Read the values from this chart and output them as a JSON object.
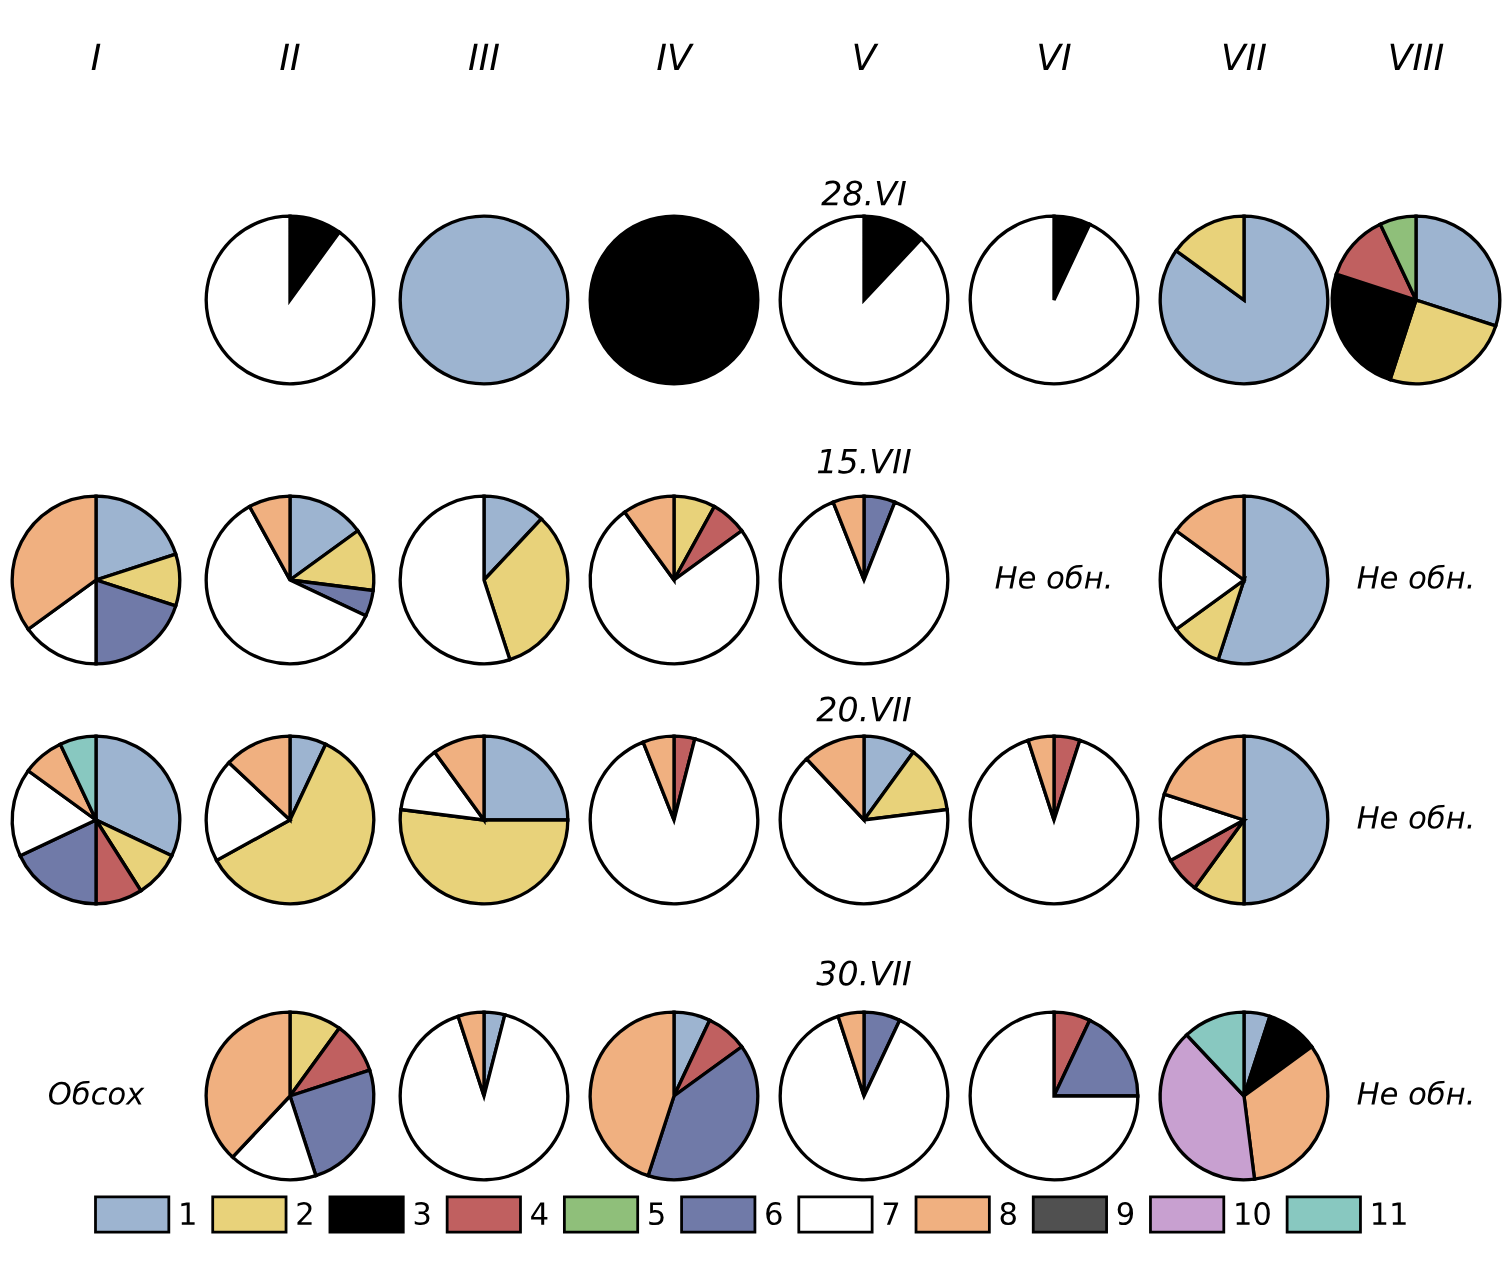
{
  "chart_data": [
    {
      "type": "other",
      "annotations": [
        "I",
        "II",
        "III",
        "IV",
        "V",
        "VI",
        "VII",
        "VIII"
      ]
    },
    {
      "type": "other",
      "title": "28.VI"
    },
    {
      "type": "other"
    },
    {
      "type": "pie",
      "legend": "bottom",
      "categories": [
        "1",
        "2",
        "3",
        "4",
        "5",
        "6",
        "7",
        "8",
        "9",
        "10",
        "11"
      ],
      "values": [
        null,
        null,
        10,
        null,
        null,
        null,
        90,
        null,
        null,
        null,
        null
      ],
      "colors": [
        "#9db4d0",
        "#e8d27a",
        "#000000",
        "#c06060",
        "#8fbf7a",
        "#707aa8",
        "#ffffff",
        "#f0b080",
        "#505050",
        "#c8a0d0",
        "#88c8c0"
      ]
    },
    {
      "type": "pie",
      "categories": [
        null,
        null,
        null,
        null,
        null,
        null,
        null,
        null,
        null,
        null,
        null
      ],
      "values": [
        100,
        null,
        null,
        null,
        null,
        null,
        null,
        null,
        null,
        null,
        null
      ],
      "colors": [
        "#9db4d0",
        "#e8d27a",
        "#000000",
        "#c06060",
        "#8fbf7a",
        "#707aa8",
        "#ffffff",
        "#f0b080",
        "#505050",
        "#c8a0d0",
        "#88c8c0"
      ]
    },
    {
      "type": "pie",
      "categories": [
        null,
        null,
        null,
        null,
        null,
        null,
        null,
        null,
        null,
        null,
        null
      ],
      "values": [
        null,
        null,
        100,
        null,
        null,
        null,
        null,
        null,
        null,
        null,
        null
      ],
      "colors": [
        "#9db4d0",
        "#e8d27a",
        "#000000",
        "#c06060",
        "#8fbf7a",
        "#707aa8",
        "#ffffff",
        "#f0b080",
        "#505050",
        "#c8a0d0",
        "#88c8c0"
      ]
    },
    {
      "type": "pie",
      "categories": [
        null,
        null,
        null,
        null,
        null,
        null,
        null,
        null,
        null,
        null,
        null
      ],
      "values": [
        null,
        null,
        12,
        null,
        null,
        null,
        88,
        null,
        null,
        null,
        null
      ],
      "colors": [
        "#9db4d0",
        "#e8d27a",
        "#000000",
        "#c06060",
        "#8fbf7a",
        "#707aa8",
        "#ffffff",
        "#f0b080",
        "#505050",
        "#c8a0d0",
        "#88c8c0"
      ]
    },
    {
      "type": "pie",
      "categories": [
        null,
        null,
        null,
        null,
        null,
        null,
        null,
        null,
        null,
        null,
        null
      ],
      "values": [
        null,
        null,
        7,
        null,
        null,
        null,
        93,
        null,
        null,
        null,
        null
      ],
      "colors": [
        "#9db4d0",
        "#e8d27a",
        "#000000",
        "#c06060",
        "#8fbf7a",
        "#707aa8",
        "#ffffff",
        "#f0b080",
        "#505050",
        "#c8a0d0",
        "#88c8c0"
      ]
    },
    {
      "type": "pie",
      "categories": [
        null,
        null,
        null,
        null,
        null,
        null,
        null,
        null,
        null,
        null,
        null
      ],
      "values": [
        85,
        15,
        null,
        null,
        null,
        null,
        null,
        null,
        null,
        null,
        null
      ],
      "colors": [
        "#9db4d0",
        "#e8d27a",
        "#000000",
        "#c06060",
        "#8fbf7a",
        "#707aa8",
        "#ffffff",
        "#f0b080",
        "#505050",
        "#c8a0d0",
        "#88c8c0"
      ]
    },
    {
      "type": "pie",
      "categories": [
        null,
        null,
        null,
        null,
        null,
        null,
        null,
        null,
        null,
        null,
        null
      ],
      "values": [
        30,
        25,
        25,
        13,
        7,
        null,
        null,
        null,
        null,
        null,
        null
      ],
      "colors": [
        "#9db4d0",
        "#e8d27a",
        "#000000",
        "#c06060",
        "#8fbf7a",
        "#707aa8",
        "#ffffff",
        "#f0b080",
        "#505050",
        "#c8a0d0",
        "#88c8c0"
      ]
    },
    {
      "type": "other",
      "title": "15.VII"
    },
    {
      "type": "pie",
      "categories": [
        null,
        null,
        null,
        null,
        null,
        null,
        null,
        null,
        null,
        null,
        null
      ],
      "values": [
        20,
        10,
        null,
        null,
        null,
        20,
        15,
        35,
        null,
        null,
        null
      ],
      "colors": [
        "#9db4d0",
        "#e8d27a",
        "#000000",
        "#c06060",
        "#8fbf7a",
        "#707aa8",
        "#ffffff",
        "#f0b080",
        "#505050",
        "#c8a0d0",
        "#88c8c0"
      ]
    },
    {
      "type": "pie",
      "categories": [
        null,
        null,
        null,
        null,
        null,
        null,
        null,
        null,
        null,
        null,
        null
      ],
      "values": [
        15,
        12,
        null,
        null,
        null,
        5,
        60,
        8,
        null,
        null,
        null
      ],
      "colors": [
        "#9db4d0",
        "#e8d27a",
        "#000000",
        "#c06060",
        "#8fbf7a",
        "#707aa8",
        "#ffffff",
        "#f0b080",
        "#505050",
        "#c8a0d0",
        "#88c8c0"
      ]
    },
    {
      "type": "pie",
      "categories": [
        null,
        null,
        null,
        null,
        null,
        null,
        null,
        null,
        null,
        null,
        null
      ],
      "values": [
        12,
        33,
        null,
        null,
        null,
        null,
        55,
        null,
        null,
        null,
        null
      ],
      "colors": [
        "#9db4d0",
        "#e8d27a",
        "#000000",
        "#c06060",
        "#8fbf7a",
        "#707aa8",
        "#ffffff",
        "#f0b080",
        "#505050",
        "#c8a0d0",
        "#88c8c0"
      ]
    },
    {
      "type": "pie",
      "categories": [
        null,
        null,
        null,
        null,
        null,
        null,
        null,
        null,
        null,
        null,
        null
      ],
      "values": [
        null,
        8,
        null,
        7,
        null,
        null,
        75,
        10,
        null,
        null,
        null
      ],
      "colors": [
        "#9db4d0",
        "#e8d27a",
        "#000000",
        "#c06060",
        "#8fbf7a",
        "#707aa8",
        "#ffffff",
        "#f0b080",
        "#505050",
        "#c8a0d0",
        "#88c8c0"
      ]
    },
    {
      "type": "pie",
      "categories": [
        null,
        null,
        null,
        null,
        null,
        null,
        null,
        null,
        null,
        null,
        null
      ],
      "values": [
        null,
        null,
        null,
        null,
        null,
        6,
        88,
        6,
        null,
        null,
        null
      ],
      "colors": [
        "#9db4d0",
        "#e8d27a",
        "#000000",
        "#c06060",
        "#8fbf7a",
        "#707aa8",
        "#ffffff",
        "#f0b080",
        "#505050",
        "#c8a0d0",
        "#88c8c0"
      ]
    },
    {
      "type": "other",
      "annotations": [
        "Не обн."
      ]
    },
    {
      "type": "pie",
      "categories": [
        null,
        null,
        null,
        null,
        null,
        null,
        null,
        null,
        null,
        null,
        null
      ],
      "values": [
        55,
        10,
        null,
        null,
        null,
        null,
        20,
        15,
        null,
        null,
        null
      ],
      "colors": [
        "#9db4d0",
        "#e8d27a",
        "#000000",
        "#c06060",
        "#8fbf7a",
        "#707aa8",
        "#ffffff",
        "#f0b080",
        "#505050",
        "#c8a0d0",
        "#88c8c0"
      ]
    },
    {
      "type": "other",
      "annotations": [
        "Не обн."
      ]
    },
    {
      "type": "other",
      "title": "20.VII"
    },
    {
      "type": "pie",
      "categories": [
        null,
        null,
        null,
        null,
        null,
        null,
        null,
        null,
        null,
        null,
        null
      ],
      "values": [
        32,
        9,
        null,
        9,
        null,
        18,
        17,
        8,
        null,
        null,
        7
      ],
      "colors": [
        "#9db4d0",
        "#e8d27a",
        "#000000",
        "#c06060",
        "#8fbf7a",
        "#707aa8",
        "#ffffff",
        "#f0b080",
        "#505050",
        "#c8a0d0",
        "#88c8c0"
      ]
    },
    {
      "type": "pie",
      "categories": [
        null,
        null,
        null,
        null,
        null,
        null,
        null,
        null,
        null,
        null,
        null
      ],
      "values": [
        7,
        60,
        null,
        null,
        null,
        null,
        20,
        13,
        null,
        null,
        null
      ],
      "colors": [
        "#9db4d0",
        "#e8d27a",
        "#000000",
        "#c06060",
        "#8fbf7a",
        "#707aa8",
        "#ffffff",
        "#f0b080",
        "#505050",
        "#c8a0d0",
        "#88c8c0"
      ]
    },
    {
      "type": "pie",
      "categories": [
        null,
        null,
        null,
        null,
        null,
        null,
        null,
        null,
        null,
        null,
        null
      ],
      "values": [
        25,
        52,
        null,
        null,
        null,
        null,
        13,
        10,
        null,
        null,
        null
      ],
      "colors": [
        "#9db4d0",
        "#e8d27a",
        "#000000",
        "#c06060",
        "#8fbf7a",
        "#707aa8",
        "#ffffff",
        "#f0b080",
        "#505050",
        "#c8a0d0",
        "#88c8c0"
      ]
    },
    {
      "type": "pie",
      "categories": [
        null,
        null,
        null,
        null,
        null,
        null,
        null,
        null,
        null,
        null,
        null
      ],
      "values": [
        null,
        null,
        null,
        4,
        null,
        null,
        90,
        6,
        null,
        null,
        null
      ],
      "colors": [
        "#9db4d0",
        "#e8d27a",
        "#000000",
        "#c06060",
        "#8fbf7a",
        "#707aa8",
        "#ffffff",
        "#f0b080",
        "#505050",
        "#c8a0d0",
        "#88c8c0"
      ]
    },
    {
      "type": "pie",
      "categories": [
        null,
        null,
        null,
        null,
        null,
        null,
        null,
        null,
        null,
        null,
        null
      ],
      "values": [
        10,
        13,
        null,
        null,
        null,
        null,
        65,
        12,
        null,
        null,
        null
      ],
      "colors": [
        "#9db4d0",
        "#e8d27a",
        "#000000",
        "#c06060",
        "#8fbf7a",
        "#707aa8",
        "#ffffff",
        "#f0b080",
        "#505050",
        "#c8a0d0",
        "#88c8c0"
      ]
    },
    {
      "type": "pie",
      "categories": [
        null,
        null,
        null,
        null,
        null,
        null,
        null,
        null,
        null,
        null,
        null
      ],
      "values": [
        null,
        null,
        null,
        5,
        null,
        null,
        90,
        5,
        null,
        null,
        null
      ],
      "colors": [
        "#9db4d0",
        "#e8d27a",
        "#000000",
        "#c06060",
        "#8fbf7a",
        "#707aa8",
        "#ffffff",
        "#f0b080",
        "#505050",
        "#c8a0d0",
        "#88c8c0"
      ]
    },
    {
      "type": "pie",
      "categories": [
        null,
        null,
        null,
        null,
        null,
        null,
        null,
        null,
        null,
        null,
        null
      ],
      "values": [
        50,
        10,
        null,
        7,
        null,
        null,
        13,
        20,
        null,
        null,
        null
      ],
      "colors": [
        "#9db4d0",
        "#e8d27a",
        "#000000",
        "#c06060",
        "#8fbf7a",
        "#707aa8",
        "#ffffff",
        "#f0b080",
        "#505050",
        "#c8a0d0",
        "#88c8c0"
      ]
    },
    {
      "type": "other",
      "annotations": [
        "Не обн."
      ]
    },
    {
      "type": "other",
      "title": "30.VII"
    },
    {
      "type": "other",
      "annotations": [
        "Обсох"
      ]
    },
    {
      "type": "pie",
      "categories": [
        null,
        null,
        null,
        null,
        null,
        null,
        null,
        null,
        null,
        null,
        null
      ],
      "values": [
        null,
        10,
        null,
        10,
        null,
        25,
        17,
        38,
        null,
        null,
        null
      ],
      "colors": [
        "#9db4d0",
        "#e8d27a",
        "#000000",
        "#c06060",
        "#8fbf7a",
        "#707aa8",
        "#ffffff",
        "#f0b080",
        "#505050",
        "#c8a0d0",
        "#88c8c0"
      ]
    },
    {
      "type": "pie",
      "categories": [
        null,
        null,
        null,
        null,
        null,
        null,
        null,
        null,
        null,
        null,
        null
      ],
      "values": [
        4,
        null,
        null,
        null,
        null,
        null,
        91,
        5,
        null,
        null,
        null
      ],
      "colors": [
        "#9db4d0",
        "#e8d27a",
        "#000000",
        "#c06060",
        "#8fbf7a",
        "#707aa8",
        "#ffffff",
        "#f0b080",
        "#505050",
        "#c8a0d0",
        "#88c8c0"
      ]
    },
    {
      "type": "pie",
      "categories": [
        null,
        null,
        null,
        null,
        null,
        null,
        null,
        null,
        null,
        null,
        null
      ],
      "values": [
        7,
        null,
        null,
        8,
        null,
        40,
        null,
        45,
        null,
        null,
        null
      ],
      "colors": [
        "#9db4d0",
        "#e8d27a",
        "#000000",
        "#c06060",
        "#8fbf7a",
        "#707aa8",
        "#ffffff",
        "#f0b080",
        "#505050",
        "#c8a0d0",
        "#88c8c0"
      ]
    },
    {
      "type": "pie",
      "categories": [
        null,
        null,
        null,
        null,
        null,
        null,
        null,
        null,
        null,
        null,
        null
      ],
      "values": [
        null,
        null,
        null,
        null,
        null,
        7,
        88,
        5,
        null,
        null,
        null
      ],
      "colors": [
        "#9db4d0",
        "#e8d27a",
        "#000000",
        "#c06060",
        "#8fbf7a",
        "#707aa8",
        "#ffffff",
        "#f0b080",
        "#505050",
        "#c8a0d0",
        "#88c8c0"
      ]
    },
    {
      "type": "pie",
      "categories": [
        null,
        null,
        null,
        null,
        null,
        null,
        null,
        null,
        null,
        null,
        null
      ],
      "values": [
        null,
        null,
        null,
        7,
        null,
        18,
        75,
        null,
        null,
        null,
        null
      ],
      "colors": [
        "#9db4d0",
        "#e8d27a",
        "#000000",
        "#c06060",
        "#8fbf7a",
        "#707aa8",
        "#ffffff",
        "#f0b080",
        "#505050",
        "#c8a0d0",
        "#88c8c0"
      ]
    },
    {
      "type": "pie",
      "categories": [
        null,
        null,
        null,
        null,
        null,
        null,
        null,
        null,
        null,
        null,
        null
      ],
      "values": [
        5,
        null,
        10,
        null,
        null,
        null,
        null,
        33,
        null,
        40,
        12
      ],
      "colors": [
        "#9db4d0",
        "#e8d27a",
        "#000000",
        "#c06060",
        "#8fbf7a",
        "#707aa8",
        "#ffffff",
        "#f0b080",
        "#505050",
        "#c8a0d0",
        "#88c8c0"
      ]
    },
    {
      "type": "other",
      "annotations": [
        "Не обн."
      ]
    }
  ]
}
